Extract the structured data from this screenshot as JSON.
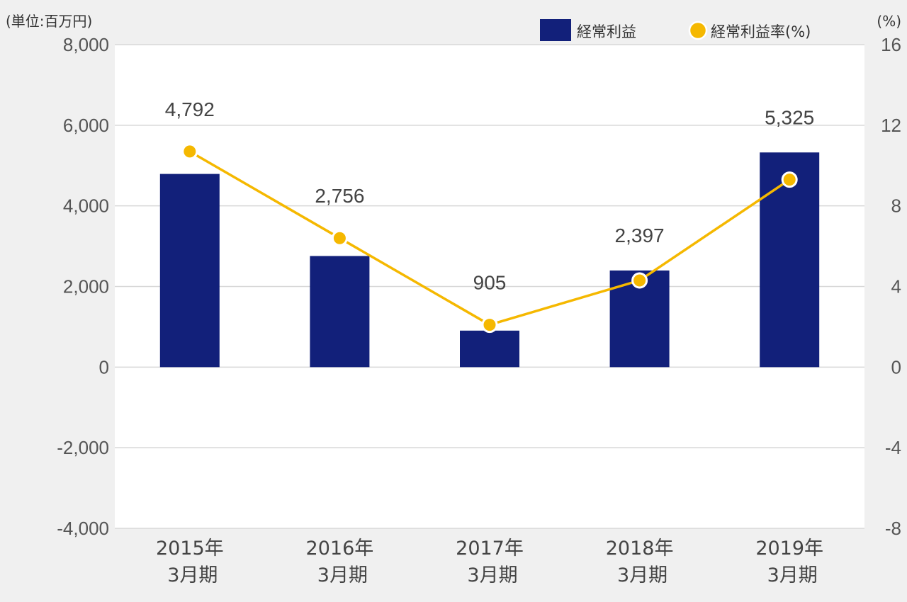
{
  "chart_data": {
    "type": "bar",
    "unit_left": "(単位:百万円)",
    "unit_right": "(%)",
    "categories": [
      [
        "2015年",
        "3月期"
      ],
      [
        "2016年",
        "3月期"
      ],
      [
        "2017年",
        "3月期"
      ],
      [
        "2018年",
        "3月期"
      ],
      [
        "2019年",
        "3月期"
      ]
    ],
    "series": [
      {
        "name": "経常利益",
        "type": "bar",
        "axis": "left",
        "color": "#12207a",
        "values": [
          4792,
          2756,
          905,
          2397,
          5325
        ],
        "labels": [
          "4,792",
          "2,756",
          "905",
          "2,397",
          "5,325"
        ]
      },
      {
        "name": "経常利益率(%)",
        "type": "line",
        "axis": "right",
        "color": "#f5b800",
        "values": [
          10.7,
          6.4,
          2.1,
          4.3,
          9.3
        ]
      }
    ],
    "left_axis": {
      "min": -4000,
      "max": 8000,
      "ticks": [
        8000,
        6000,
        4000,
        2000,
        0,
        -2000,
        -4000
      ],
      "tick_labels": [
        "8,000",
        "6,000",
        "4,000",
        "2,000",
        "0",
        "-2,000",
        "-4,000"
      ]
    },
    "right_axis": {
      "min": -8,
      "max": 16,
      "ticks": [
        16,
        12,
        8,
        4,
        0,
        -4,
        -8
      ],
      "tick_labels": [
        "16",
        "12",
        "8",
        "4",
        "0",
        "-4",
        "-8"
      ]
    },
    "grid": true,
    "legend_position": "top-right"
  }
}
